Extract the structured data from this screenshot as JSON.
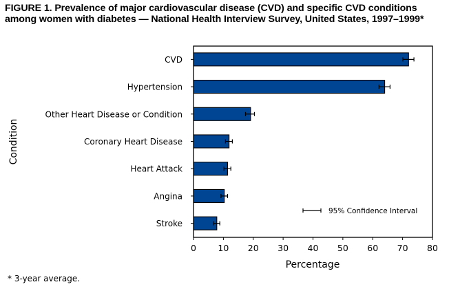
{
  "figure": {
    "title": "FIGURE 1. Prevalence of major cardiovascular disease (CVD) and specific CVD conditions among women with diabetes — National Health Interview Survey, United States, 1997–1999*",
    "footnote": "* 3-year average."
  },
  "chart_data": {
    "type": "bar",
    "orientation": "horizontal",
    "title": "Prevalence of major cardiovascular disease (CVD) and specific CVD conditions among women with diabetes — National Health Interview Survey, United States, 1997–1999*",
    "xlabel": "Percentage",
    "ylabel": "Condition",
    "xlim": [
      0,
      80
    ],
    "xticks": [
      0,
      10,
      20,
      30,
      40,
      50,
      60,
      70,
      80
    ],
    "grid": false,
    "categories": [
      "CVD",
      "Hypertension",
      "Other Heart Disease or Condition",
      "Coronary Heart Disease",
      "Heart Attack",
      "Angina",
      "Stroke"
    ],
    "values": [
      72.0,
      64.0,
      19.1,
      11.9,
      11.4,
      10.3,
      7.8
    ],
    "ci_lower": [
      70.1,
      62.1,
      17.4,
      10.7,
      10.2,
      9.2,
      6.7
    ],
    "ci_upper": [
      73.8,
      65.8,
      20.4,
      13.0,
      12.5,
      11.4,
      8.8
    ],
    "bar_color": "#004494",
    "legend": {
      "label": "95% Confidence Interval",
      "position": "bottom-right"
    }
  }
}
